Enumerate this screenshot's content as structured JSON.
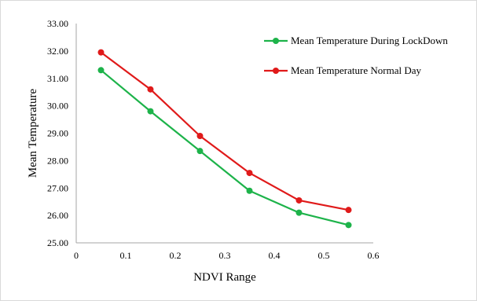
{
  "chart_data": {
    "type": "line",
    "xlabel": "NDVI Range",
    "ylabel": "Mean Temperature",
    "xlim": [
      0,
      0.6
    ],
    "ylim": [
      25,
      33
    ],
    "x_ticks": [
      "0",
      "0.1",
      "0.2",
      "0.3",
      "0.4",
      "0.5",
      "0.6"
    ],
    "y_ticks": [
      "25.00",
      "26.00",
      "27.00",
      "28.00",
      "29.00",
      "30.00",
      "31.00",
      "32.00",
      "33.00"
    ],
    "grid": false,
    "legend_position": "top-right",
    "series": [
      {
        "name": "Mean Temperature During LockDown",
        "color": "#1db34a",
        "x": [
          0.05,
          0.15,
          0.25,
          0.35,
          0.45,
          0.55
        ],
        "y": [
          31.3,
          29.8,
          28.35,
          26.9,
          26.1,
          25.65
        ]
      },
      {
        "name": "Mean Temperature Normal Day",
        "color": "#e01a1a",
        "x": [
          0.05,
          0.15,
          0.25,
          0.35,
          0.45,
          0.55
        ],
        "y": [
          31.95,
          30.6,
          28.9,
          27.55,
          26.55,
          26.2
        ]
      }
    ]
  }
}
